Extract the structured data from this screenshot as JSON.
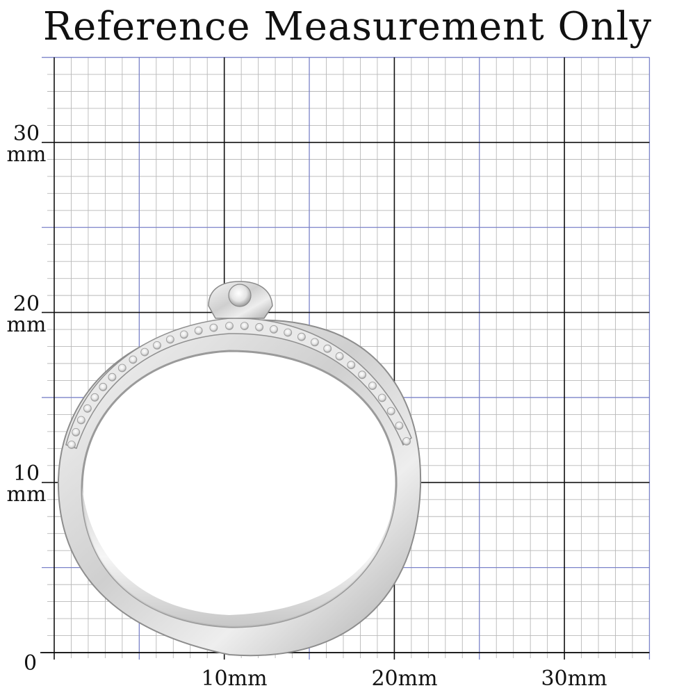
{
  "title": "Reference Measurement Only",
  "grid": {
    "unit": "mm",
    "minor_step_mm": 1,
    "mid_step_mm": 5,
    "major_step_mm": 10,
    "x_range_mm": [
      0,
      35
    ],
    "y_range_mm": [
      0,
      35
    ],
    "minor_color": "#b8b8b8",
    "mid_color": "#7b83c9",
    "major_color": "#111111"
  },
  "axis_labels": {
    "origin": "0",
    "y": [
      {
        "value": "30",
        "unit": "mm"
      },
      {
        "value": "20",
        "unit": "mm"
      },
      {
        "value": "10",
        "unit": "mm"
      }
    ],
    "x": [
      "10mm",
      "20mm",
      "30mm"
    ]
  },
  "subject": {
    "name": "ring",
    "material_color": "#d9d9d9",
    "stone_count_visible": 1
  }
}
